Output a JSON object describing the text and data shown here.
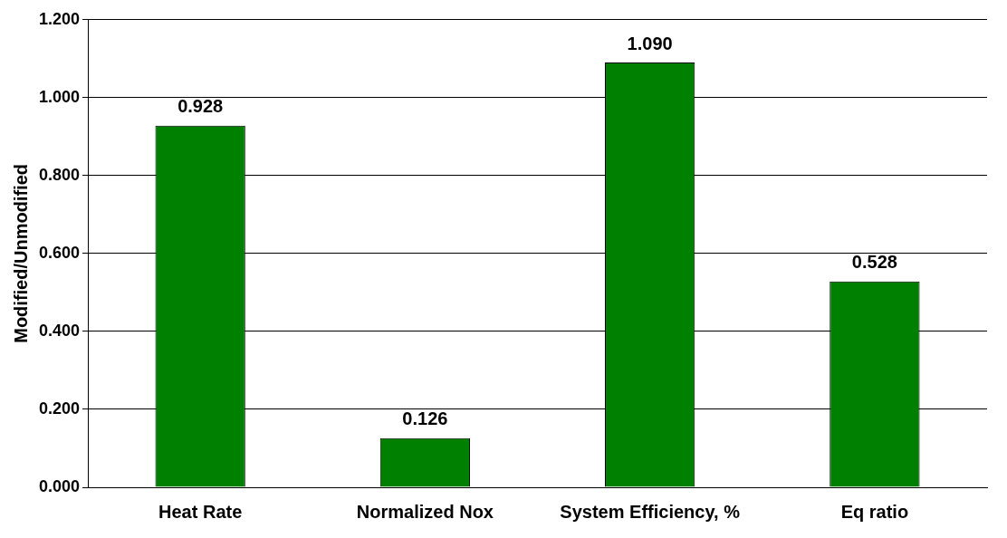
{
  "chart_data": {
    "type": "bar",
    "ylabel": "Modified/Unmodified",
    "categories": [
      "Heat Rate",
      "Normalized Nox",
      "System Efficiency, %",
      "Eq ratio"
    ],
    "values": [
      0.928,
      0.126,
      1.09,
      0.528
    ],
    "value_labels": [
      "0.928",
      "0.126",
      "1.090",
      "0.528"
    ],
    "color": "#008000",
    "ylim": [
      0,
      1.2
    ],
    "yticks": [
      {
        "value": 0,
        "label": "0.000"
      },
      {
        "value": 0.2,
        "label": "0.200"
      },
      {
        "value": 0.4,
        "label": "0.400"
      },
      {
        "value": 0.6,
        "label": "0.600"
      },
      {
        "value": 0.8,
        "label": "0.800"
      },
      {
        "value": 1,
        "label": "1.000"
      },
      {
        "value": 1.2,
        "label": "1.200"
      }
    ],
    "grid": "y",
    "legend": false
  }
}
